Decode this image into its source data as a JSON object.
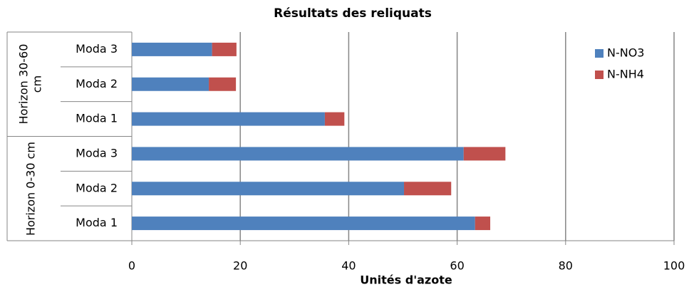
{
  "chart_data": {
    "type": "stacked-bar-horizontal",
    "title": "Résultats des reliquats",
    "x_label": "Unités d'azote",
    "groups": [
      {
        "name": "Horizon 0-30 cm",
        "categories": [
          "Moda 1",
          "Moda 2",
          "Moda 3"
        ]
      },
      {
        "name": "Horizon 30-60 cm",
        "categories": [
          "Moda 1",
          "Moda 2",
          "Moda 3"
        ]
      }
    ],
    "series": [
      {
        "name": "N-NO3",
        "color": "#4f81bd",
        "values": [
          63.3,
          50.2,
          61.2,
          35.6,
          14.2,
          14.8
        ]
      },
      {
        "name": "N-NH4",
        "color": "#c0504d",
        "values": [
          2.8,
          8.7,
          7.7,
          3.6,
          5.0,
          4.5
        ]
      }
    ],
    "xlim": [
      0,
      100
    ],
    "xticks": [
      0,
      20,
      40,
      60,
      80,
      100
    ],
    "grid": true,
    "legend": "right"
  }
}
